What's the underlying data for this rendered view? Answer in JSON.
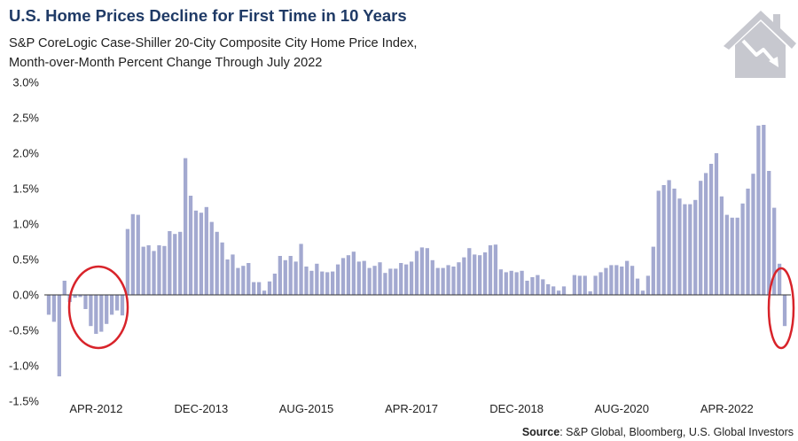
{
  "title": "U.S. Home Prices Decline for First Time in 10 Years",
  "subtitle_line1": "S&P CoreLogic Case-Shiller 20-City Composite City Home Price Index,",
  "subtitle_line2": "Month-over-Month Percent Change Through July 2022",
  "source_label": "Source",
  "source_text": ": S&P Global, Bloomberg, U.S. Global Investors",
  "icon": "house-price-decline-icon",
  "colors": {
    "bar": "#a3a9d0",
    "title": "#1f3a66",
    "highlight_circle": "#d8232a",
    "axis": "#333333",
    "icon": "#c7c8cf"
  },
  "chart_data": {
    "type": "bar",
    "title": "U.S. Home Prices Decline for First Time in 10 Years",
    "xlabel": "",
    "ylabel": "",
    "ylim": [
      -1.5,
      3.0
    ],
    "yticks": [
      -1.5,
      -1.0,
      -0.5,
      0.0,
      0.5,
      1.0,
      1.5,
      2.0,
      2.5,
      3.0
    ],
    "ytick_labels": [
      "-1.5%",
      "-1.0%",
      "-0.5%",
      "0.0%",
      "0.5%",
      "1.0%",
      "1.5%",
      "2.0%",
      "2.5%",
      "3.0%"
    ],
    "grid": false,
    "x_start": "JUL-2011",
    "x_end": "JUL-2022",
    "x_ticks": [
      {
        "label": "APR-2012",
        "date": "2012-04"
      },
      {
        "label": "DEC-2013",
        "date": "2013-12"
      },
      {
        "label": "AUG-2015",
        "date": "2015-08"
      },
      {
        "label": "APR-2017",
        "date": "2017-04"
      },
      {
        "label": "DEC-2018",
        "date": "2018-12"
      },
      {
        "label": "AUG-2020",
        "date": "2020-08"
      },
      {
        "label": "APR-2022",
        "date": "2022-04"
      }
    ],
    "values": [
      -0.28,
      -0.38,
      -1.15,
      0.2,
      -0.1,
      -0.04,
      -0.03,
      -0.2,
      -0.44,
      -0.55,
      -0.52,
      -0.41,
      -0.28,
      -0.22,
      -0.29,
      0.93,
      1.14,
      1.13,
      0.68,
      0.7,
      0.62,
      0.7,
      0.69,
      0.9,
      0.86,
      0.89,
      1.93,
      1.4,
      1.19,
      1.16,
      1.24,
      1.03,
      0.89,
      0.74,
      0.5,
      0.57,
      0.38,
      0.41,
      0.45,
      0.18,
      0.18,
      0.06,
      0.19,
      0.3,
      0.55,
      0.49,
      0.55,
      0.47,
      0.72,
      0.4,
      0.34,
      0.44,
      0.33,
      0.32,
      0.33,
      0.43,
      0.52,
      0.56,
      0.61,
      0.47,
      0.48,
      0.38,
      0.41,
      0.46,
      0.31,
      0.37,
      0.37,
      0.45,
      0.43,
      0.47,
      0.62,
      0.67,
      0.66,
      0.49,
      0.38,
      0.38,
      0.42,
      0.4,
      0.46,
      0.53,
      0.66,
      0.57,
      0.56,
      0.6,
      0.7,
      0.71,
      0.36,
      0.32,
      0.34,
      0.32,
      0.34,
      0.2,
      0.25,
      0.28,
      0.22,
      0.15,
      0.12,
      0.06,
      0.12,
      0.0,
      0.28,
      0.27,
      0.27,
      0.05,
      0.27,
      0.32,
      0.38,
      0.42,
      0.42,
      0.4,
      0.48,
      0.41,
      0.23,
      0.06,
      0.27,
      0.68,
      1.47,
      1.55,
      1.62,
      1.5,
      1.36,
      1.28,
      1.28,
      1.34,
      1.61,
      1.72,
      1.85,
      2.0,
      1.39,
      1.13,
      1.09,
      1.09,
      1.29,
      1.5,
      1.71,
      2.39,
      2.4,
      1.75,
      1.23,
      0.44,
      -0.44
    ]
  }
}
